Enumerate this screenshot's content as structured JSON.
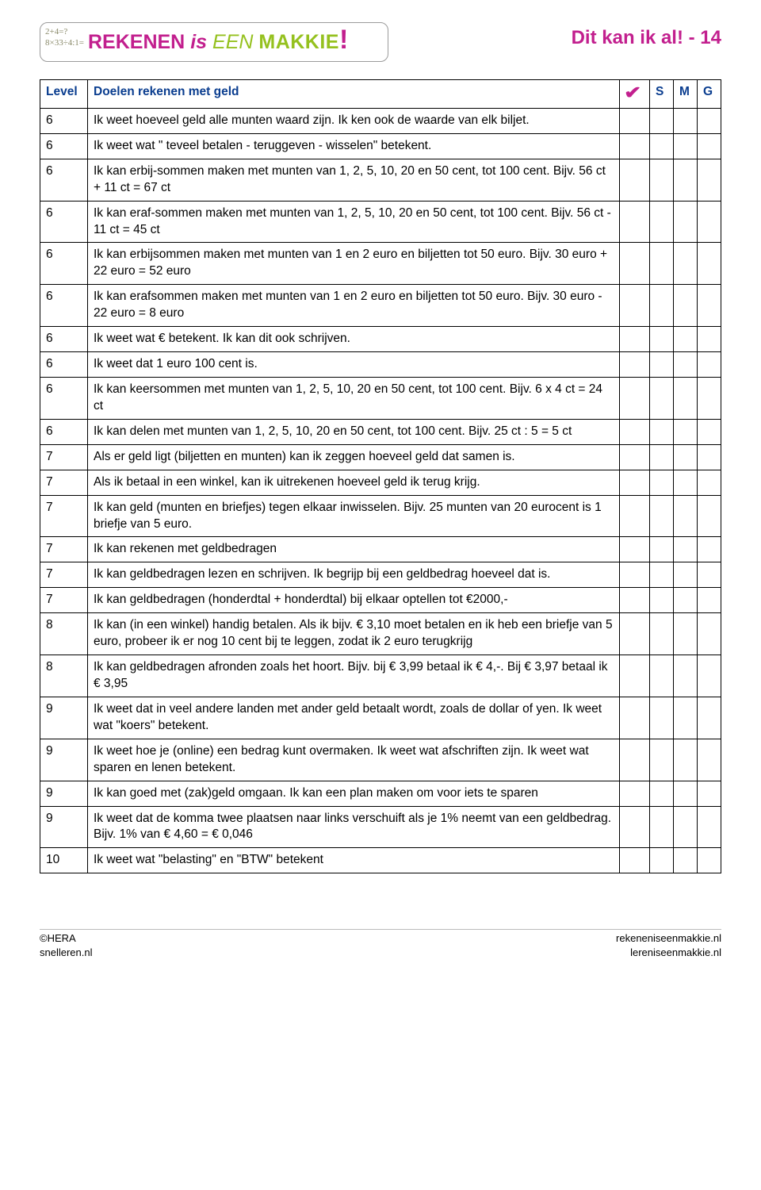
{
  "header": {
    "logo_math_line1": "2+4=?",
    "logo_math_line2": "8×33÷4:1=",
    "logo_rekenen": "REKENEN",
    "logo_is": "is",
    "logo_een": "EEN",
    "logo_makkie": "MAKKIE",
    "logo_excl": "!",
    "page_title": "Dit kan ik al! - 14"
  },
  "table": {
    "col_level": "Level",
    "col_goal": "Doelen rekenen met geld",
    "col_s": "S",
    "col_m": "M",
    "col_g": "G",
    "header_color": "#0a3d8f",
    "border_color": "#000000",
    "checkmark_color": "#c21f8e",
    "rows": [
      {
        "level": "6",
        "text": "Ik weet hoeveel geld alle munten waard zijn. Ik ken ook de waarde van elk biljet."
      },
      {
        "level": "6",
        "text": "Ik weet wat \" teveel betalen - teruggeven - wisselen\" betekent."
      },
      {
        "level": "6",
        "text": "Ik kan erbij-sommen maken met munten van 1, 2, 5, 10, 20 en 50 cent, tot 100 cent. Bijv. 56 ct + 11 ct = 67 ct"
      },
      {
        "level": "6",
        "text": "Ik kan eraf-sommen maken met munten van 1, 2, 5, 10, 20 en 50 cent, tot 100 cent. Bijv. 56 ct - 11 ct = 45 ct"
      },
      {
        "level": "6",
        "text": "Ik kan erbijsommen maken met munten van 1 en 2 euro en biljetten tot 50 euro. Bijv. 30 euro + 22 euro = 52 euro"
      },
      {
        "level": "6",
        "text": "Ik kan erafsommen maken met munten van 1 en 2 euro en biljetten tot 50 euro. Bijv. 30 euro - 22 euro = 8 euro"
      },
      {
        "level": "6",
        "text": "Ik weet wat € betekent. Ik kan dit ook schrijven."
      },
      {
        "level": "6",
        "text": "Ik weet dat 1 euro 100 cent is."
      },
      {
        "level": "6",
        "text": "Ik kan keersommen met munten van 1, 2, 5, 10, 20 en 50 cent, tot 100 cent. Bijv. 6 x 4 ct = 24 ct"
      },
      {
        "level": "6",
        "text": "Ik kan delen met munten van 1, 2, 5, 10, 20 en 50 cent, tot 100 cent. Bijv. 25 ct : 5 = 5 ct"
      },
      {
        "level": "7",
        "text": "Als er geld ligt (biljetten en munten) kan ik zeggen hoeveel geld dat samen is."
      },
      {
        "level": "7",
        "text": "Als ik betaal in een winkel, kan ik uitrekenen hoeveel geld ik terug krijg."
      },
      {
        "level": "7",
        "text": "Ik kan geld (munten en briefjes) tegen elkaar inwisselen. Bijv. 25 munten van 20 eurocent is 1 briefje van 5 euro."
      },
      {
        "level": "7",
        "text": "Ik kan rekenen met geldbedragen"
      },
      {
        "level": "7",
        "text": "Ik kan geldbedragen lezen en schrijven. Ik begrijp bij een geldbedrag hoeveel dat is."
      },
      {
        "level": "7",
        "text": "Ik kan geldbedragen (honderdtal + honderdtal) bij elkaar optellen tot €2000,-"
      },
      {
        "level": "8",
        "text": "Ik kan (in een winkel) handig betalen. Als ik bijv. € 3,10 moet betalen en ik heb een briefje van 5 euro, probeer ik er nog 10 cent bij te leggen, zodat ik 2 euro terugkrijg"
      },
      {
        "level": "8",
        "text": "Ik kan geldbedragen afronden zoals het hoort. Bijv. bij € 3,99 betaal ik € 4,-. Bij € 3,97 betaal ik € 3,95"
      },
      {
        "level": "9",
        "text": "Ik weet dat in veel andere landen met ander geld betaalt wordt, zoals de dollar of yen. Ik weet wat \"koers\" betekent."
      },
      {
        "level": "9",
        "text": "Ik weet hoe je (online) een bedrag kunt overmaken. Ik weet wat afschriften zijn. Ik weet wat sparen en lenen betekent."
      },
      {
        "level": "9",
        "text": "Ik kan goed met (zak)geld omgaan. Ik kan een plan maken om voor iets te sparen"
      },
      {
        "level": "9",
        "text": "Ik weet dat de komma twee plaatsen naar links verschuift als je 1% neemt van een geldbedrag. Bijv. 1% van € 4,60 = € 0,046"
      },
      {
        "level": "10",
        "text": "Ik weet wat \"belasting\" en \"BTW\" betekent"
      }
    ]
  },
  "footer": {
    "left_line1": "©HERA",
    "left_line2": "snelleren.nl",
    "right_line1": "rekeneniseenmakkie.nl",
    "right_line2": "lereniseenmakkie.nl"
  }
}
